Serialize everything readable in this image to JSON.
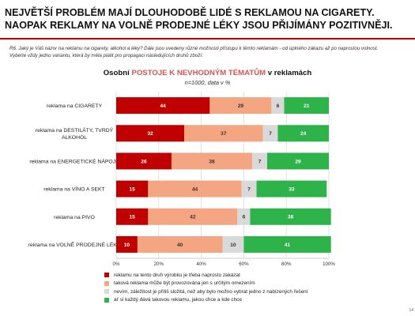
{
  "headline": {
    "line1": "NEJVĚTŠÍ PROBLÉM MAJÍ DLOUHODOBĚ LIDÉ S REKLAMOU NA CIGARETY.",
    "line2": "NAOPAK REKLAMY NA VOLNĚ PRODEJNÉ LÉKY JSOU PŘIJÍMÁNY POZITIVNĚJI."
  },
  "question": {
    "line1": "R6. Jaký je Váš názor na reklamu na cigarety, alkohol a léky? Dále jsou uvedeny různé možnosti přístupu k těmto reklamám - od úplného zákazu až po naprostou volnost.",
    "line2": "Vyberte vždy jednu variantu, která by měla platit pro propagaci následujících druhů zboží:"
  },
  "page_number": "14",
  "chart_data": {
    "type": "bar",
    "orientation": "horizontal",
    "stacked": true,
    "title_prefix": "Osobní ",
    "title_highlight": "POSTOJE K NEVHODNÝM TÉMATŮM",
    "title_suffix": " v reklamách",
    "subtitle": "n=1000, data v %",
    "categories": [
      "reklama na CIGARETY",
      "reklama na DESTILÁTY, TVRDÝ ALKOHOL",
      "reklama na ENERGETICKÉ NÁPOJE",
      "reklama na VÍNO A SEKT",
      "reklama na PIVO",
      "reklama na VOLNĚ PRODEJNÉ LÉKY"
    ],
    "category_lines": [
      [
        "reklama na CIGARETY"
      ],
      [
        "reklama na DESTILÁTY, TVRDÝ",
        "ALKOHOL"
      ],
      [
        "reklama na ENERGETICKÉ NÁPOJE"
      ],
      [
        "reklama na VÍNO A SEKT"
      ],
      [
        "reklama na PIVO"
      ],
      [
        "reklama na VOLNĚ PRODEJNÉ LÉKY"
      ]
    ],
    "series": [
      {
        "name": "reklamu na tento druh výrobku je třeba naprosto zakázat",
        "color": "#c00000",
        "label_color": "#ffffff",
        "values": [
          44,
          32,
          26,
          15,
          15,
          10
        ]
      },
      {
        "name": "taková reklama může být provozována jen s určitým omezením",
        "color": "#f4a582",
        "label_color": "#333333",
        "values": [
          29,
          37,
          38,
          44,
          42,
          40
        ]
      },
      {
        "name": "nevím, záležitost je příliš složitá, než aby bylo možno vybrat jedno z nabízených řešení",
        "color": "#d9d9d9",
        "label_color": "#333333",
        "values": [
          6,
          7,
          7,
          7,
          6,
          10
        ]
      },
      {
        "name": "ať si každý dává takovou reklamu, jakou chce a kde chce",
        "color": "#2db34a",
        "label_color": "#ffffff",
        "values": [
          21,
          24,
          29,
          33,
          38,
          41
        ]
      }
    ],
    "x_ticks": [
      "0%",
      "20%",
      "40%",
      "60%",
      "80%",
      "100%"
    ],
    "xlim": [
      0,
      100
    ],
    "grid": true,
    "legend_position": "bottom"
  }
}
